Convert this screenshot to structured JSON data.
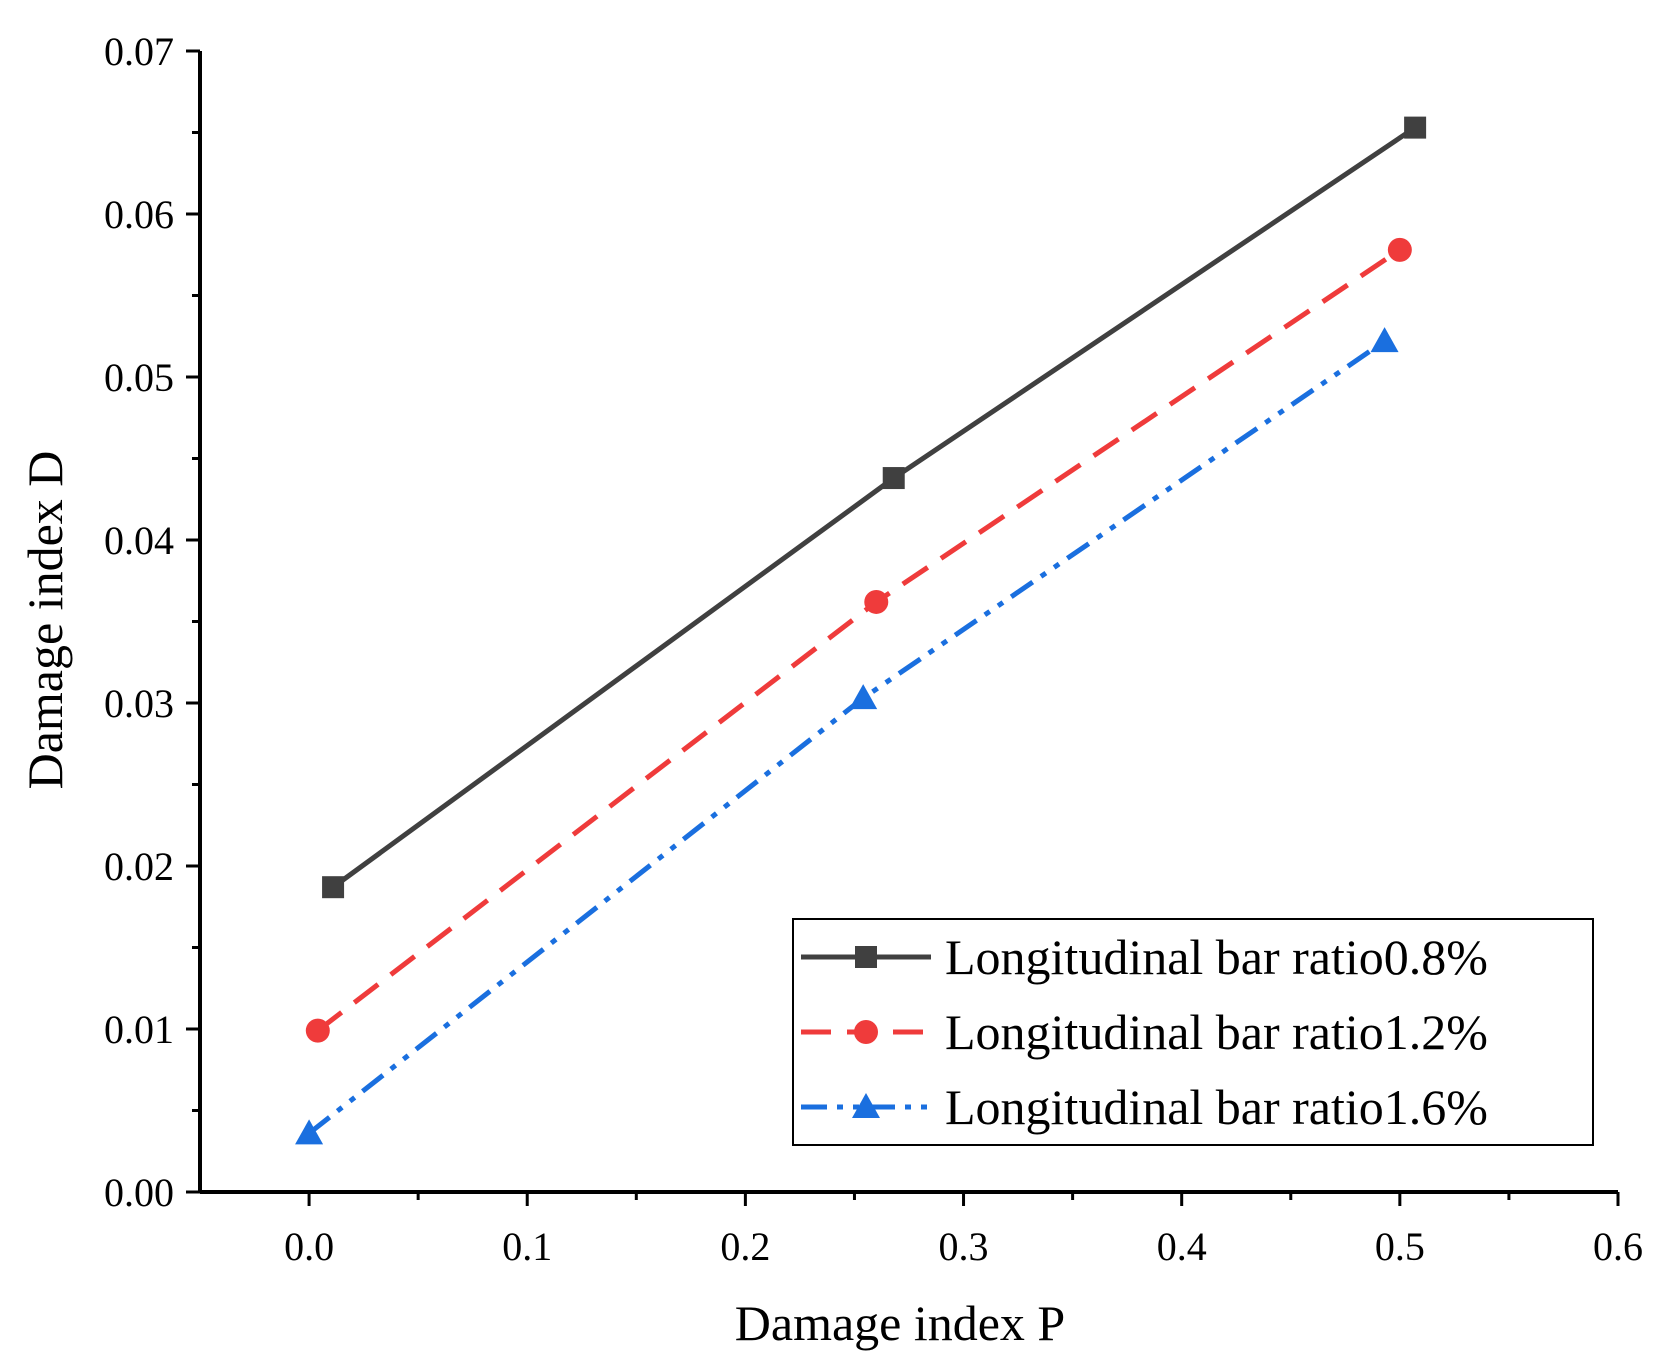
{
  "chart_data": {
    "type": "line",
    "title": "",
    "xlabel": "Damage index P",
    "ylabel": "Damage index D",
    "xlim": [
      -0.05,
      0.6
    ],
    "ylim": [
      0.0,
      0.07
    ],
    "xticks": [
      "0.0",
      "0.1",
      "0.2",
      "0.3",
      "0.4",
      "0.5",
      "0.6"
    ],
    "xtick_values": [
      0.0,
      0.1,
      0.2,
      0.3,
      0.4,
      0.5,
      0.6
    ],
    "yticks": [
      "0.00",
      "0.01",
      "0.02",
      "0.03",
      "0.04",
      "0.05",
      "0.06",
      "0.07"
    ],
    "ytick_values": [
      0.0,
      0.01,
      0.02,
      0.03,
      0.04,
      0.05,
      0.06,
      0.07
    ],
    "grid": false,
    "legend_position": "bottom-right",
    "series": [
      {
        "name": "Longitudinal bar ratio0.8%",
        "color": "#404040",
        "line_style": "solid",
        "marker": "square",
        "x": [
          0.011,
          0.268,
          0.507
        ],
        "y": [
          0.0187,
          0.0438,
          0.0653
        ]
      },
      {
        "name": "Longitudinal bar ratio1.2%",
        "color": "#ef3b3b",
        "line_style": "dashed",
        "marker": "circle",
        "x": [
          0.004,
          0.26,
          0.5
        ],
        "y": [
          0.0099,
          0.0362,
          0.0578
        ]
      },
      {
        "name": "Longitudinal bar ratio1.6%",
        "color": "#1a6fdf",
        "line_style": "dash-dot-dot",
        "marker": "triangle",
        "x": [
          0.0,
          0.254,
          0.493
        ],
        "y": [
          0.0036,
          0.0303,
          0.0522
        ]
      }
    ]
  }
}
